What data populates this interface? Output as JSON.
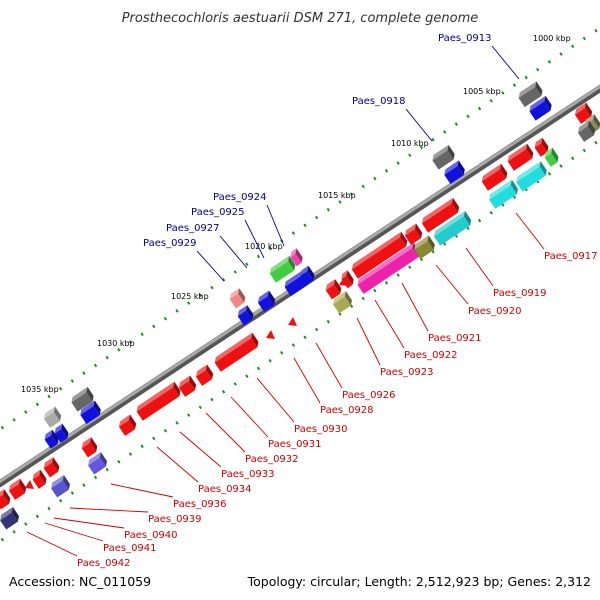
{
  "title": "Prosthecochloris aestuarii DSM 271, complete genome",
  "footer": {
    "accession": "Accession: NC_011059",
    "summary": "Topology: circular; Length: 2,512,923 bp; Genes: 2,312"
  },
  "colors": {
    "forward_label": "#00008b",
    "reverse_label": "#cc0000",
    "backbone": "#808080",
    "tick": "#1e8c1e"
  },
  "ruler": [
    {
      "label": "1000 kbp"
    },
    {
      "label": "1005 kbp"
    },
    {
      "label": "1010 kbp"
    },
    {
      "label": "1015 kbp"
    },
    {
      "label": "1020 kbp"
    },
    {
      "label": "1025 kbp"
    },
    {
      "label": "1030 kbp"
    },
    {
      "label": "1035 kbp"
    }
  ],
  "genes": [
    {
      "name": "Paes_0913",
      "strand": "forward"
    },
    {
      "name": "Paes_0917",
      "strand": "reverse"
    },
    {
      "name": "Paes_0918",
      "strand": "forward"
    },
    {
      "name": "Paes_0919",
      "strand": "reverse"
    },
    {
      "name": "Paes_0920",
      "strand": "reverse"
    },
    {
      "name": "Paes_0921",
      "strand": "reverse"
    },
    {
      "name": "Paes_0922",
      "strand": "reverse"
    },
    {
      "name": "Paes_0923",
      "strand": "reverse"
    },
    {
      "name": "Paes_0924",
      "strand": "forward"
    },
    {
      "name": "Paes_0925",
      "strand": "forward"
    },
    {
      "name": "Paes_0926",
      "strand": "reverse"
    },
    {
      "name": "Paes_0927",
      "strand": "forward"
    },
    {
      "name": "Paes_0928",
      "strand": "reverse"
    },
    {
      "name": "Paes_0929",
      "strand": "forward"
    },
    {
      "name": "Paes_0930",
      "strand": "reverse"
    },
    {
      "name": "Paes_0931",
      "strand": "reverse"
    },
    {
      "name": "Paes_0932",
      "strand": "reverse"
    },
    {
      "name": "Paes_0933",
      "strand": "reverse"
    },
    {
      "name": "Paes_0934",
      "strand": "reverse"
    },
    {
      "name": "Paes_0936",
      "strand": "reverse"
    },
    {
      "name": "Paes_0939",
      "strand": "reverse"
    },
    {
      "name": "Paes_0940",
      "strand": "reverse"
    },
    {
      "name": "Paes_0941",
      "strand": "reverse"
    },
    {
      "name": "Paes_0942",
      "strand": "reverse"
    }
  ]
}
